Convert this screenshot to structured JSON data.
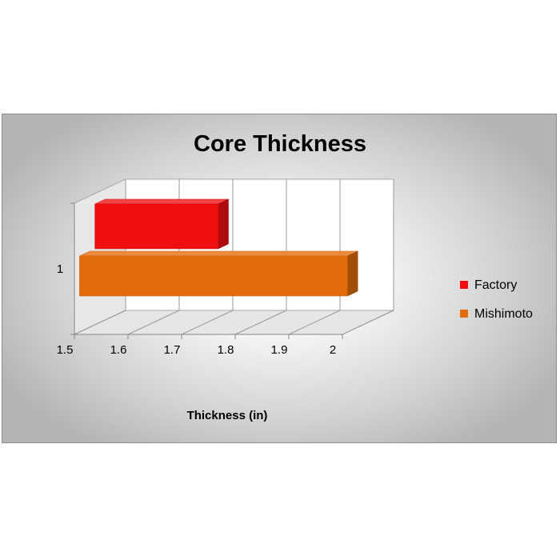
{
  "chart_data": {
    "type": "bar",
    "orientation": "horizontal",
    "style": "3d-clustered",
    "title": "Core Thickness",
    "xlabel": "Thickness (in)",
    "ylabel": "",
    "categories": [
      "1"
    ],
    "x_ticks": [
      "1.5",
      "1.6",
      "1.7",
      "1.8",
      "1.9",
      "2"
    ],
    "xlim": [
      1.5,
      2.0
    ],
    "grid": true,
    "legend_position": "right",
    "series": [
      {
        "name": "Factory",
        "values": [
          1.73
        ],
        "color": "#f00f0f"
      },
      {
        "name": "Mishimoto",
        "values": [
          2.0
        ],
        "color": "#e36c0a"
      }
    ]
  }
}
